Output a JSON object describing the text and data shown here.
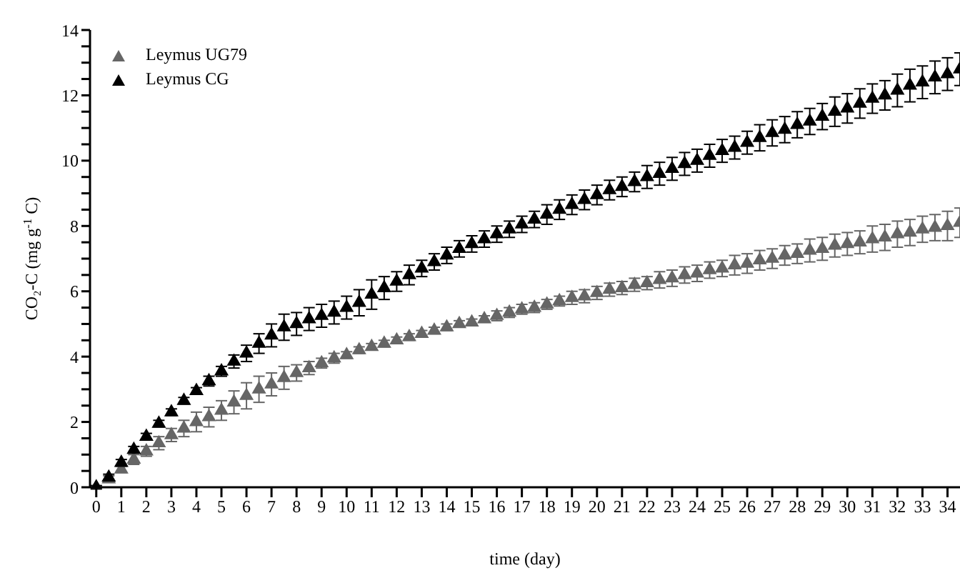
{
  "chart_data": {
    "type": "scatter",
    "xlabel": "time (day)",
    "ylabel": "CO₂-C (mg g$^{-1}$ C)",
    "x": [
      0,
      0.5,
      1,
      1.5,
      2,
      2.5,
      3,
      3.5,
      4,
      4.5,
      5,
      5.5,
      6,
      6.5,
      7,
      7.5,
      8,
      8.5,
      9,
      9.5,
      10,
      10.5,
      11,
      11.5,
      12,
      12.5,
      13,
      13.5,
      14,
      14.5,
      15,
      15.5,
      16,
      16.5,
      17,
      17.5,
      18,
      18.5,
      19,
      19.5,
      20,
      20.5,
      21,
      21.5,
      22,
      22.5,
      23,
      23.5,
      24,
      24.5,
      25,
      25.5,
      26,
      26.5,
      27,
      27.5,
      28,
      28.5,
      29,
      29.5,
      30,
      30.5,
      31,
      31.5,
      32,
      32.5,
      33,
      33.5,
      34,
      34.5
    ],
    "series": [
      {
        "name": "Leymus UG79",
        "color": "#666666",
        "values": [
          0,
          0.25,
          0.55,
          0.85,
          1.1,
          1.35,
          1.6,
          1.8,
          2.0,
          2.15,
          2.35,
          2.6,
          2.8,
          3.0,
          3.15,
          3.35,
          3.5,
          3.65,
          3.8,
          3.95,
          4.05,
          4.2,
          4.3,
          4.4,
          4.5,
          4.6,
          4.7,
          4.8,
          4.9,
          5.0,
          5.05,
          5.15,
          5.25,
          5.35,
          5.45,
          5.5,
          5.6,
          5.7,
          5.8,
          5.85,
          5.95,
          6.05,
          6.1,
          6.2,
          6.25,
          6.35,
          6.4,
          6.5,
          6.55,
          6.65,
          6.7,
          6.8,
          6.85,
          6.95,
          7.0,
          7.1,
          7.15,
          7.25,
          7.3,
          7.4,
          7.45,
          7.5,
          7.6,
          7.65,
          7.75,
          7.8,
          7.9,
          7.95,
          8.0,
          8.1
        ],
        "errors": [
          0.05,
          0.1,
          0.1,
          0.15,
          0.15,
          0.2,
          0.2,
          0.25,
          0.3,
          0.3,
          0.3,
          0.35,
          0.4,
          0.4,
          0.35,
          0.35,
          0.25,
          0.2,
          0.15,
          0.15,
          0.1,
          0.1,
          0.1,
          0.1,
          0.1,
          0.1,
          0.1,
          0.1,
          0.1,
          0.1,
          0.1,
          0.1,
          0.15,
          0.15,
          0.15,
          0.15,
          0.15,
          0.15,
          0.2,
          0.2,
          0.2,
          0.2,
          0.2,
          0.2,
          0.2,
          0.25,
          0.25,
          0.25,
          0.25,
          0.25,
          0.25,
          0.3,
          0.3,
          0.3,
          0.3,
          0.3,
          0.3,
          0.35,
          0.35,
          0.35,
          0.35,
          0.35,
          0.4,
          0.4,
          0.4,
          0.4,
          0.4,
          0.4,
          0.45,
          0.45
        ]
      },
      {
        "name": "Leymus CG",
        "color": "#000000",
        "values": [
          0,
          0.3,
          0.75,
          1.15,
          1.55,
          1.95,
          2.3,
          2.65,
          2.95,
          3.25,
          3.55,
          3.85,
          4.1,
          4.4,
          4.65,
          4.9,
          5.0,
          5.15,
          5.25,
          5.35,
          5.5,
          5.65,
          5.9,
          6.1,
          6.3,
          6.5,
          6.7,
          6.9,
          7.1,
          7.3,
          7.45,
          7.6,
          7.75,
          7.9,
          8.05,
          8.2,
          8.35,
          8.5,
          8.65,
          8.8,
          8.95,
          9.1,
          9.2,
          9.35,
          9.5,
          9.6,
          9.75,
          9.9,
          10.0,
          10.15,
          10.3,
          10.4,
          10.55,
          10.7,
          10.85,
          10.95,
          11.1,
          11.2,
          11.35,
          11.5,
          11.6,
          11.75,
          11.9,
          12.0,
          12.15,
          12.3,
          12.4,
          12.55,
          12.65,
          12.8
        ],
        "errors": [
          0.05,
          0.1,
          0.1,
          0.1,
          0.1,
          0.1,
          0.1,
          0.1,
          0.1,
          0.15,
          0.15,
          0.2,
          0.25,
          0.3,
          0.35,
          0.4,
          0.35,
          0.35,
          0.35,
          0.35,
          0.35,
          0.4,
          0.45,
          0.35,
          0.3,
          0.3,
          0.25,
          0.25,
          0.25,
          0.25,
          0.25,
          0.25,
          0.25,
          0.25,
          0.25,
          0.25,
          0.3,
          0.3,
          0.3,
          0.3,
          0.3,
          0.3,
          0.3,
          0.3,
          0.35,
          0.35,
          0.35,
          0.35,
          0.35,
          0.35,
          0.35,
          0.35,
          0.35,
          0.4,
          0.4,
          0.4,
          0.4,
          0.4,
          0.4,
          0.45,
          0.45,
          0.45,
          0.45,
          0.45,
          0.5,
          0.5,
          0.5,
          0.5,
          0.5,
          0.5
        ]
      }
    ],
    "xlim": [
      -0.25,
      34.5
    ],
    "xticks": [
      0,
      1,
      2,
      3,
      4,
      5,
      6,
      7,
      8,
      9,
      10,
      11,
      12,
      13,
      14,
      15,
      16,
      17,
      18,
      19,
      20,
      21,
      22,
      23,
      24,
      25,
      26,
      27,
      28,
      29,
      30,
      31,
      32,
      33,
      34
    ],
    "ylim": [
      0,
      14
    ],
    "yticks": [
      0,
      {
        "value": 0.5,
        "label": null
      },
      {
        "value": 1,
        "label": null
      },
      {
        "value": 1.5,
        "label": null
      },
      2,
      {
        "value": 2.5,
        "label": null
      },
      {
        "value": 3,
        "label": null
      },
      {
        "value": 3.5,
        "label": null
      },
      4,
      {
        "value": 4.5,
        "label": null
      },
      {
        "value": 5,
        "label": null
      },
      {
        "value": 5.5,
        "label": null
      },
      6,
      {
        "value": 6.5,
        "label": null
      },
      {
        "value": 7,
        "label": null
      },
      {
        "value": 7.5,
        "label": null
      },
      8,
      {
        "value": 8.5,
        "label": null
      },
      {
        "value": 9,
        "label": null
      },
      {
        "value": 9.5,
        "label": null
      },
      10,
      {
        "value": 10.5,
        "label": null
      },
      {
        "value": 11,
        "label": null
      },
      {
        "value": 11.5,
        "label": null
      },
      12,
      {
        "value": 12.5,
        "label": null
      },
      {
        "value": 13,
        "label": null
      },
      {
        "value": 13.5,
        "label": null
      },
      14
    ],
    "marker": "triangle",
    "legend": "top left",
    "grid": false
  }
}
